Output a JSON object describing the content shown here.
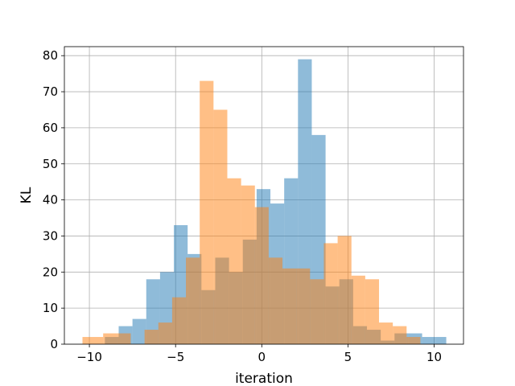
{
  "chart_data": {
    "type": "histogram",
    "title": "",
    "xlabel": "iteration",
    "ylabel": "KL",
    "xlim": [
      -11.45,
      11.7
    ],
    "ylim": [
      0,
      82.5
    ],
    "xticks": [
      -10,
      -5,
      0,
      5,
      10
    ],
    "yticks": [
      0,
      10,
      20,
      30,
      40,
      50,
      60,
      70,
      80
    ],
    "grid": true,
    "legend": "none",
    "series": [
      {
        "color": "#1f77b4",
        "opacity": 0.5,
        "bin_edges": [
          -9.1,
          -8.3,
          -7.5,
          -6.7,
          -5.9,
          -5.1,
          -4.3,
          -3.5,
          -2.7,
          -1.9,
          -1.1,
          -0.3,
          0.5,
          1.3,
          2.1,
          2.9,
          3.7,
          4.5,
          5.3,
          6.1,
          6.9,
          7.7,
          8.5,
          9.3,
          10.1,
          10.7
        ],
        "counts": [
          2,
          5,
          7,
          18,
          20,
          33,
          25,
          15,
          24,
          20,
          29,
          43,
          39,
          46,
          79,
          58,
          16,
          18,
          5,
          4,
          1,
          3,
          3,
          2,
          2
        ]
      },
      {
        "color": "#ff7f0e",
        "opacity": 0.5,
        "bin_edges": [
          -10.4,
          -9.2,
          -8.4,
          -7.6,
          -6.8,
          -6.0,
          -5.2,
          -4.4,
          -3.6,
          -2.8,
          -2.0,
          -1.2,
          -0.4,
          0.4,
          1.2,
          2.0,
          2.8,
          3.6,
          4.4,
          5.2,
          6.0,
          6.8,
          7.6,
          8.4,
          9.2
        ],
        "counts": [
          2,
          3,
          3,
          0,
          4,
          6,
          13,
          24,
          73,
          65,
          46,
          44,
          38,
          24,
          21,
          21,
          18,
          28,
          30,
          19,
          18,
          6,
          5,
          2
        ]
      }
    ]
  },
  "colors": {
    "axis": "#000000",
    "grid": "#b0b0b0",
    "background": "#ffffff"
  }
}
